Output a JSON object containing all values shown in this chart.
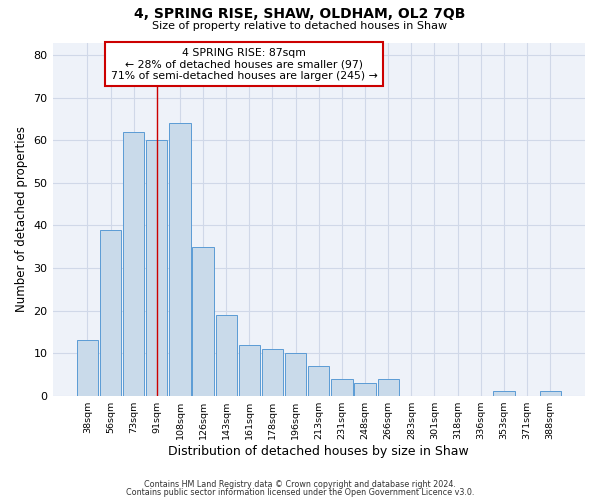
{
  "title": "4, SPRING RISE, SHAW, OLDHAM, OL2 7QB",
  "subtitle": "Size of property relative to detached houses in Shaw",
  "xlabel": "Distribution of detached houses by size in Shaw",
  "ylabel": "Number of detached properties",
  "bar_labels": [
    "38sqm",
    "56sqm",
    "73sqm",
    "91sqm",
    "108sqm",
    "126sqm",
    "143sqm",
    "161sqm",
    "178sqm",
    "196sqm",
    "213sqm",
    "231sqm",
    "248sqm",
    "266sqm",
    "283sqm",
    "301sqm",
    "318sqm",
    "336sqm",
    "353sqm",
    "371sqm",
    "388sqm"
  ],
  "bar_values": [
    13,
    39,
    62,
    60,
    64,
    35,
    19,
    12,
    11,
    10,
    7,
    4,
    3,
    4,
    0,
    0,
    0,
    0,
    1,
    0,
    1
  ],
  "bar_color": "#c9daea",
  "bar_edge_color": "#5b9bd5",
  "ylim": [
    0,
    83
  ],
  "yticks": [
    0,
    10,
    20,
    30,
    40,
    50,
    60,
    70,
    80
  ],
  "property_label": "4 SPRING RISE: 87sqm",
  "annotation_line1": "← 28% of detached houses are smaller (97)",
  "annotation_line2": "71% of semi-detached houses are larger (245) →",
  "vline_bar_index": 3,
  "vline_color": "#cc0000",
  "footnote1": "Contains HM Land Registry data © Crown copyright and database right 2024.",
  "footnote2": "Contains public sector information licensed under the Open Government Licence v3.0.",
  "grid_color": "#d0d8e8",
  "background_color": "#eef2f9"
}
